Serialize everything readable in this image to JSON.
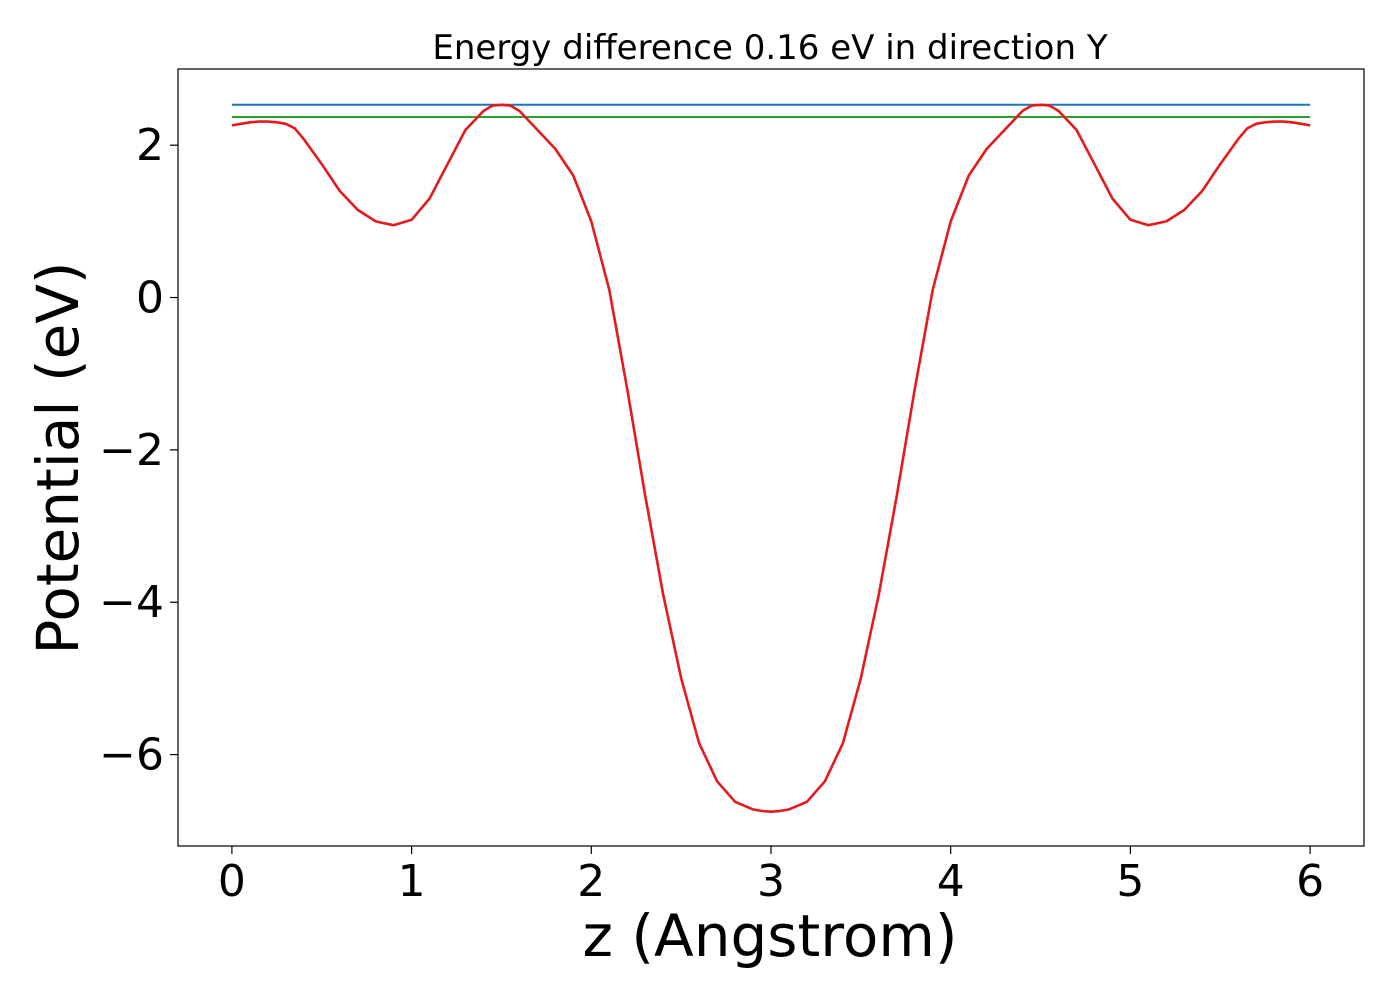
{
  "chart_data": {
    "type": "line",
    "title": "Energy difference 0.16 eV in direction Y",
    "xlabel": "z (Angstrom)",
    "ylabel": "Potential (eV)",
    "xlim": [
      -0.3,
      6.3
    ],
    "ylim": [
      -7.2,
      3.0
    ],
    "xticks": [
      0,
      1,
      2,
      3,
      4,
      5,
      6
    ],
    "yticks": [
      2,
      0,
      -2,
      -4,
      -6
    ],
    "xtick_labels": [
      "0",
      "1",
      "2",
      "3",
      "4",
      "5",
      "6"
    ],
    "ytick_labels": [
      "2",
      "0",
      "−2",
      "−4",
      "−6"
    ],
    "grid": false,
    "series": [
      {
        "color": "#1f77b4",
        "x": [
          0,
          6
        ],
        "y": [
          2.53,
          2.53
        ]
      },
      {
        "color": "#2ca02c",
        "x": [
          0,
          6
        ],
        "y": [
          2.37,
          2.37
        ]
      },
      {
        "color": "#e41a1c",
        "x": [
          0,
          0.05,
          0.1,
          0.15,
          0.2,
          0.25,
          0.3,
          0.35,
          0.4,
          0.5,
          0.6,
          0.7,
          0.8,
          0.9,
          1.0,
          1.1,
          1.2,
          1.3,
          1.4,
          1.45,
          1.5,
          1.55,
          1.6,
          1.7,
          1.8,
          1.9,
          2.0,
          2.1,
          2.2,
          2.3,
          2.4,
          2.5,
          2.6,
          2.7,
          2.8,
          2.9,
          2.95,
          3.0,
          3.05,
          3.1,
          3.2,
          3.3,
          3.4,
          3.5,
          3.6,
          3.7,
          3.8,
          3.9,
          4.0,
          4.1,
          4.2,
          4.3,
          4.4,
          4.45,
          4.5,
          4.55,
          4.6,
          4.7,
          4.8,
          4.9,
          5.0,
          5.1,
          5.2,
          5.3,
          5.4,
          5.5,
          5.6,
          5.65,
          5.7,
          5.75,
          5.8,
          5.85,
          5.9,
          5.95,
          6.0
        ],
        "y": [
          2.26,
          2.28,
          2.3,
          2.31,
          2.31,
          2.3,
          2.28,
          2.22,
          2.08,
          1.75,
          1.4,
          1.15,
          1.0,
          0.95,
          1.02,
          1.3,
          1.75,
          2.2,
          2.45,
          2.52,
          2.53,
          2.52,
          2.45,
          2.2,
          1.95,
          1.6,
          1.0,
          0.1,
          -1.2,
          -2.6,
          -3.9,
          -5.0,
          -5.85,
          -6.35,
          -6.62,
          -6.72,
          -6.74,
          -6.75,
          -6.74,
          -6.72,
          -6.62,
          -6.35,
          -5.85,
          -5.0,
          -3.9,
          -2.6,
          -1.2,
          0.1,
          1.0,
          1.6,
          1.95,
          2.2,
          2.45,
          2.52,
          2.53,
          2.52,
          2.45,
          2.2,
          1.75,
          1.3,
          1.02,
          0.95,
          1.0,
          1.15,
          1.4,
          1.75,
          2.08,
          2.22,
          2.28,
          2.3,
          2.31,
          2.31,
          2.3,
          2.28,
          2.26
        ]
      }
    ]
  }
}
